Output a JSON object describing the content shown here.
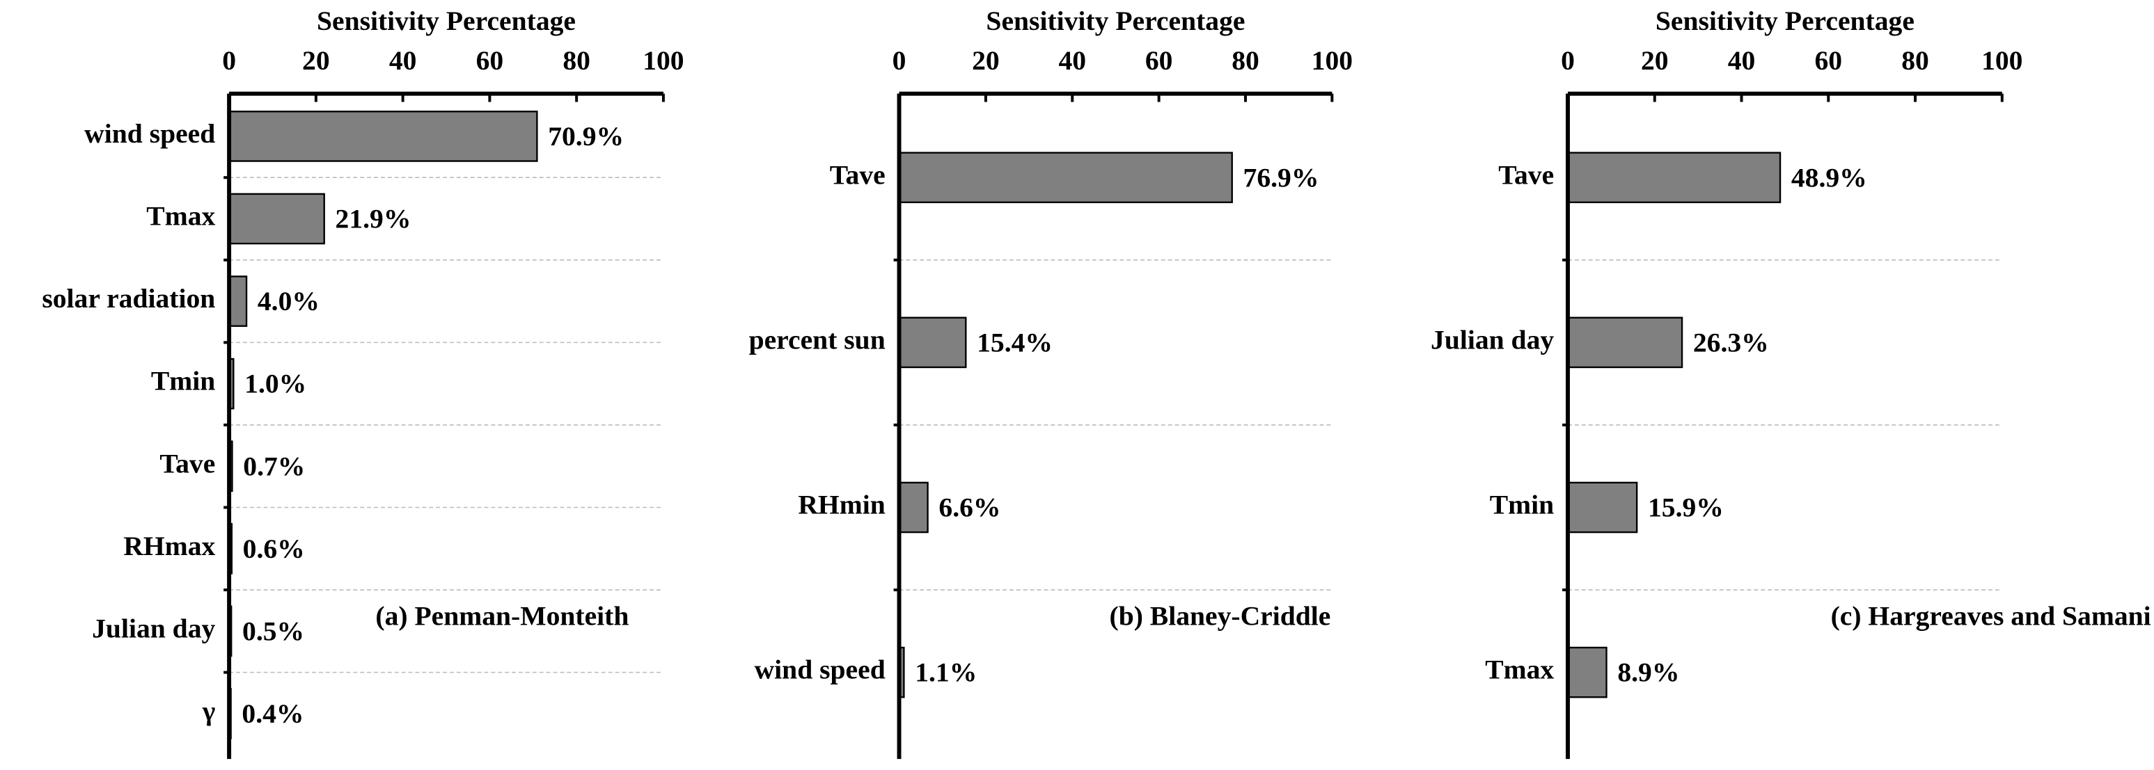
{
  "chart_data": [
    {
      "type": "bar",
      "orientation": "horizontal",
      "xlabel": "Sensitivity Percentage",
      "categories": [
        "wind speed",
        "Tmax",
        "solar radiation",
        "Tmin",
        "Tave",
        "RHmax",
        "Julian day",
        "γ"
      ],
      "values": [
        70.9,
        21.9,
        4.0,
        1.0,
        0.7,
        0.6,
        0.5,
        0.4
      ],
      "value_labels": [
        "70.9%",
        "21.9%",
        "4.0%",
        "1.0%",
        "0.7%",
        "0.6%",
        "0.5%",
        "0.4%"
      ],
      "xlim": [
        0,
        100
      ],
      "xticks": [
        0,
        20,
        40,
        60,
        80,
        100
      ],
      "color": "#808080",
      "annotation": "(a) Penman-Monteith"
    },
    {
      "type": "bar",
      "orientation": "horizontal",
      "xlabel": "Sensitivity Percentage",
      "categories": [
        "Tave",
        "percent sun",
        "RHmin",
        "wind speed"
      ],
      "values": [
        76.9,
        15.4,
        6.6,
        1.1
      ],
      "value_labels": [
        "76.9%",
        "15.4%",
        "6.6%",
        "1.1%"
      ],
      "xlim": [
        0,
        100
      ],
      "xticks": [
        0,
        20,
        40,
        60,
        80,
        100
      ],
      "color": "#808080",
      "annotation": "(b) Blaney-Criddle"
    },
    {
      "type": "bar",
      "orientation": "horizontal",
      "xlabel": "Sensitivity Percentage",
      "categories": [
        "Tave",
        "Julian day",
        "Tmin",
        "Tmax"
      ],
      "values": [
        48.9,
        26.3,
        15.9,
        8.9
      ],
      "value_labels": [
        "48.9%",
        "26.3%",
        "15.9%",
        "8.9%"
      ],
      "xlim": [
        0,
        100
      ],
      "xticks": [
        0,
        20,
        40,
        60,
        80,
        100
      ],
      "color": "#808080",
      "annotation": "(c) Hargreaves and Samani"
    }
  ]
}
